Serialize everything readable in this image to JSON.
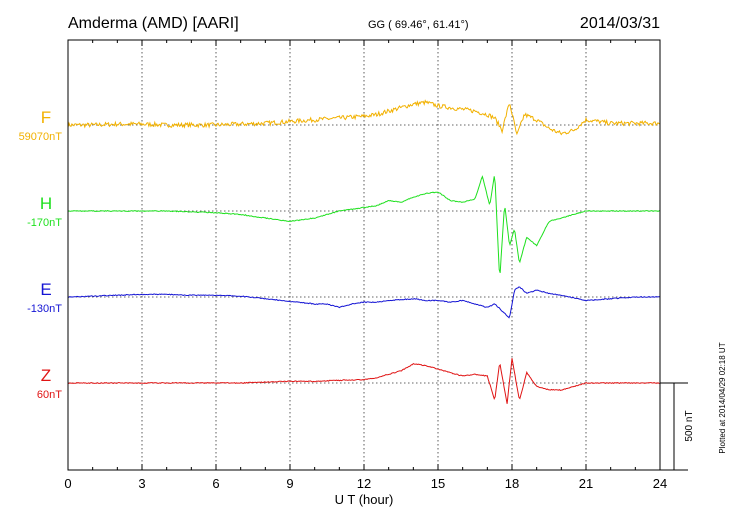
{
  "header": {
    "station": "Amderma (AMD)  [AARI]",
    "coords": "GG ( 69.46°,  61.41°)",
    "date": "2014/03/31"
  },
  "side_note": "Plotted at 2014/04/29 02:18 UT",
  "chart_data": {
    "type": "line",
    "xlabel": "U T (hour)",
    "xlim": [
      0,
      24
    ],
    "xticks": [
      "0",
      "3",
      "6",
      "9",
      "12",
      "15",
      "18",
      "21",
      "24"
    ],
    "scale_bar": {
      "label": "500 nT",
      "value_nT": 500
    },
    "series": [
      {
        "name": "F",
        "baseline_label": "59070nT",
        "color": "#f2b100",
        "hours": [
          0,
          1,
          2,
          3,
          4,
          5,
          6,
          7,
          8,
          9,
          10,
          11,
          12,
          12.5,
          13,
          13.5,
          14,
          14.5,
          15,
          15.5,
          16,
          16.5,
          17,
          17.3,
          17.6,
          17.9,
          18.2,
          18.5,
          19,
          19.5,
          20,
          20.5,
          21,
          21.5,
          22,
          23,
          24
        ],
        "values": [
          0,
          0,
          5,
          5,
          0,
          0,
          0,
          5,
          10,
          20,
          30,
          40,
          50,
          60,
          80,
          100,
          120,
          130,
          110,
          100,
          90,
          80,
          60,
          40,
          -30,
          130,
          -60,
          60,
          30,
          -20,
          -50,
          -30,
          30,
          20,
          10,
          10,
          10
        ]
      },
      {
        "name": "H",
        "baseline_label": "-170nT",
        "color": "#1ee01e",
        "hours": [
          0,
          1,
          2,
          3,
          4,
          5,
          6,
          7,
          8,
          9,
          10,
          11,
          12,
          12.5,
          13,
          13.5,
          14,
          14.5,
          15,
          15.5,
          16,
          16.5,
          16.8,
          17.1,
          17.3,
          17.5,
          17.7,
          17.9,
          18.1,
          18.3,
          18.6,
          19,
          19.5,
          20,
          21,
          22,
          23,
          24
        ],
        "values": [
          0,
          0,
          0,
          0,
          0,
          -5,
          -10,
          -20,
          -40,
          -60,
          -40,
          0,
          20,
          30,
          60,
          50,
          80,
          100,
          110,
          60,
          50,
          70,
          200,
          30,
          220,
          -400,
          40,
          -200,
          -100,
          -300,
          -150,
          -200,
          -60,
          -40,
          0,
          0,
          0,
          0
        ]
      },
      {
        "name": "E",
        "baseline_label": "-130nT",
        "color": "#1414d4",
        "hours": [
          0,
          1,
          2,
          3,
          4,
          5,
          6,
          7,
          8,
          9,
          10,
          10.5,
          11,
          11.5,
          12,
          12.5,
          13,
          13.5,
          14,
          14.5,
          15,
          15.5,
          16,
          16.5,
          17,
          17.3,
          17.6,
          17.9,
          18.1,
          18.3,
          18.6,
          19,
          19.5,
          20,
          21,
          22,
          23,
          24
        ],
        "values": [
          0,
          5,
          10,
          15,
          15,
          10,
          10,
          5,
          -10,
          -25,
          -40,
          -40,
          -60,
          -40,
          -30,
          -30,
          -20,
          -15,
          -10,
          -20,
          -20,
          -30,
          -20,
          -40,
          -60,
          -40,
          -80,
          -120,
          40,
          60,
          20,
          40,
          20,
          10,
          -20,
          -10,
          0,
          0
        ]
      },
      {
        "name": "Z",
        "baseline_label": "60nT",
        "color": "#e01414",
        "hours": [
          0,
          1,
          2,
          3,
          4,
          5,
          6,
          7,
          8,
          9,
          10,
          11,
          12,
          12.5,
          13,
          13.5,
          14,
          14.5,
          15,
          15.5,
          16,
          16.5,
          17,
          17.3,
          17.5,
          17.8,
          18,
          18.3,
          18.6,
          19,
          19.5,
          20,
          20.5,
          21,
          22,
          23,
          24
        ],
        "values": [
          0,
          0,
          0,
          0,
          0,
          0,
          0,
          0,
          5,
          10,
          10,
          15,
          20,
          30,
          50,
          70,
          110,
          100,
          80,
          60,
          40,
          50,
          40,
          -100,
          120,
          -120,
          140,
          -100,
          60,
          -20,
          -40,
          -40,
          -20,
          0,
          0,
          0,
          0
        ]
      }
    ]
  }
}
